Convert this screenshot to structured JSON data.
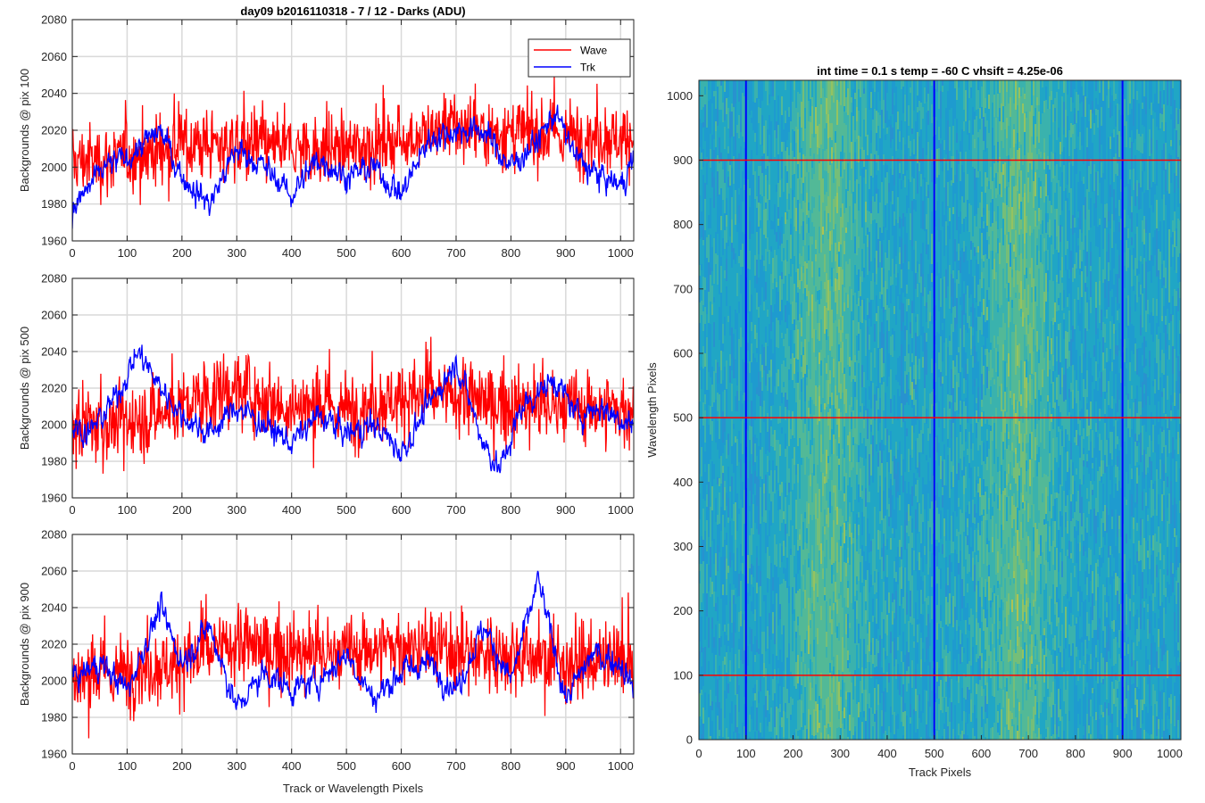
{
  "figure": {
    "line_plots_xlabel": "Track or Wavelength Pixels",
    "line_plots_title": "day09 b2016110318 - 7 / 12 - Darks (ADU)"
  },
  "legend": {
    "placement": "top-right of first subplot",
    "entries": [
      {
        "label": "Wave",
        "color": "#ff0000"
      },
      {
        "label": "Trk",
        "color": "#0000ff"
      }
    ]
  },
  "chart_data": [
    {
      "type": "line",
      "title": "day09 b2016110318 - 7 / 12 - Darks (ADU)",
      "xlabel": "",
      "ylabel": "Backgrounds @ pix 100",
      "xlim": [
        0,
        1024
      ],
      "ylim": [
        1960,
        2080
      ],
      "xticks": [
        0,
        100,
        200,
        300,
        400,
        500,
        600,
        700,
        800,
        900,
        1000
      ],
      "yticks": [
        1960,
        1980,
        2000,
        2020,
        2040,
        2060,
        2080
      ],
      "grid": true,
      "series": [
        {
          "name": "Wave",
          "color": "#ff0000",
          "n": 1024,
          "mean": 2010,
          "noise_std": 13,
          "trend_x": [
            0,
            100,
            200,
            300,
            400,
            500,
            600,
            700,
            800,
            900,
            1024
          ],
          "trend_y": [
            2003,
            2005,
            2012,
            2012,
            2010,
            2010,
            2015,
            2022,
            2018,
            2017,
            2016
          ]
        },
        {
          "name": "Trk",
          "color": "#0000ff",
          "n": 1024,
          "mean": 2000,
          "noise_std": 5,
          "trend_x": [
            0,
            20,
            60,
            100,
            160,
            200,
            250,
            300,
            350,
            400,
            450,
            500,
            550,
            600,
            650,
            700,
            750,
            800,
            850,
            880,
            920,
            960,
            1000,
            1024
          ],
          "trend_y": [
            1975,
            1985,
            2000,
            2005,
            2020,
            1995,
            1980,
            2010,
            2000,
            1985,
            2005,
            1995,
            2000,
            1985,
            2015,
            2020,
            2020,
            2000,
            2015,
            2030,
            2005,
            1995,
            1990,
            2005
          ]
        }
      ]
    },
    {
      "type": "line",
      "title": "",
      "xlabel": "",
      "ylabel": "Backgrounds @ pix 500",
      "xlim": [
        0,
        1024
      ],
      "ylim": [
        1960,
        2080
      ],
      "xticks": [
        0,
        100,
        200,
        300,
        400,
        500,
        600,
        700,
        800,
        900,
        1000
      ],
      "yticks": [
        1960,
        1980,
        2000,
        2020,
        2040,
        2060,
        2080
      ],
      "grid": true,
      "series": [
        {
          "name": "Wave",
          "color": "#ff0000",
          "n": 1024,
          "mean": 2010,
          "noise_std": 14,
          "trend_x": [
            0,
            100,
            200,
            300,
            400,
            500,
            600,
            700,
            800,
            900,
            1024
          ],
          "trend_y": [
            2000,
            2000,
            2010,
            2020,
            2010,
            2008,
            2015,
            2015,
            2010,
            2010,
            2008
          ]
        },
        {
          "name": "Trk",
          "color": "#0000ff",
          "n": 1024,
          "mean": 2005,
          "noise_std": 5,
          "trend_x": [
            0,
            30,
            80,
            120,
            150,
            200,
            250,
            300,
            350,
            400,
            450,
            500,
            550,
            600,
            650,
            700,
            750,
            780,
            820,
            880,
            920,
            960,
            1024
          ],
          "trend_y": [
            2000,
            1995,
            2015,
            2040,
            2025,
            2005,
            1995,
            2010,
            2000,
            1990,
            2005,
            1995,
            2000,
            1985,
            2010,
            2035,
            1990,
            1975,
            2010,
            2025,
            2005,
            2010,
            2000
          ]
        }
      ]
    },
    {
      "type": "line",
      "title": "",
      "xlabel": "Track or Wavelength Pixels",
      "ylabel": "Backgrounds @ pix 900",
      "xlim": [
        0,
        1024
      ],
      "ylim": [
        1960,
        2080
      ],
      "xticks": [
        0,
        100,
        200,
        300,
        400,
        500,
        600,
        700,
        800,
        900,
        1000
      ],
      "yticks": [
        1960,
        1980,
        2000,
        2020,
        2040,
        2060,
        2080
      ],
      "grid": true,
      "series": [
        {
          "name": "Wave",
          "color": "#ff0000",
          "n": 1024,
          "mean": 2010,
          "noise_std": 14,
          "trend_x": [
            0,
            100,
            200,
            300,
            400,
            500,
            600,
            700,
            800,
            900,
            1024
          ],
          "trend_y": [
            2000,
            2005,
            2010,
            2020,
            2015,
            2015,
            2020,
            2015,
            2015,
            2010,
            2010
          ]
        },
        {
          "name": "Trk",
          "color": "#0000ff",
          "n": 1024,
          "mean": 2005,
          "noise_std": 5,
          "trend_x": [
            0,
            50,
            100,
            160,
            200,
            250,
            300,
            350,
            400,
            450,
            500,
            550,
            600,
            650,
            700,
            750,
            800,
            850,
            900,
            950,
            1000,
            1024
          ],
          "trend_y": [
            2000,
            2010,
            1995,
            2040,
            2010,
            2030,
            1985,
            2005,
            1995,
            2000,
            2015,
            1990,
            2005,
            2010,
            1995,
            2030,
            2000,
            2055,
            1990,
            2015,
            2010,
            1995
          ]
        }
      ]
    },
    {
      "type": "heatmap",
      "title": "int time = 0.1 s   temp = -60 C   vhsift = 4.25e-06",
      "xlabel": "Track Pixels",
      "ylabel": "Wavelength Pixels",
      "xlim": [
        0,
        1024
      ],
      "ylim": [
        0,
        1024
      ],
      "xticks": [
        0,
        100,
        200,
        300,
        400,
        500,
        600,
        700,
        800,
        900,
        1000
      ],
      "yticks": [
        0,
        100,
        200,
        300,
        400,
        500,
        600,
        700,
        800,
        900,
        1000
      ],
      "colormap": "parula",
      "base_color": "#1c9fc7",
      "bright_bands_track_px": [
        270,
        680
      ],
      "marker_lines_vertical_track_px": [
        100,
        500,
        900
      ],
      "marker_lines_vertical_color": "#0000ff",
      "marker_lines_horizontal_wavelength_px": [
        100,
        500,
        900
      ],
      "marker_lines_horizontal_color": "#ff0000"
    }
  ]
}
